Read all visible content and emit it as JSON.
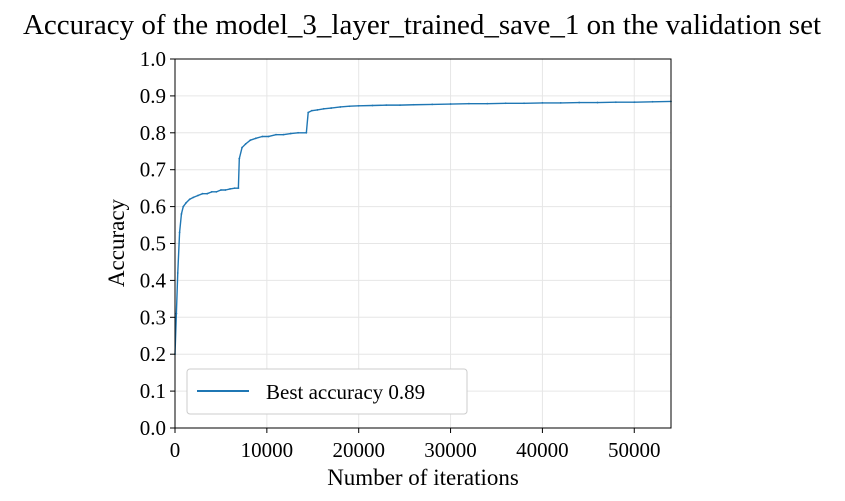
{
  "chart_data": {
    "type": "line",
    "title": "Accuracy of the model_3_layer_trained_save_1 on the validation set",
    "xlabel": "Number of iterations",
    "ylabel": "Accuracy",
    "xlim": [
      0,
      54000
    ],
    "ylim": [
      0.0,
      1.0
    ],
    "x_ticks": [
      0,
      10000,
      20000,
      30000,
      40000,
      50000
    ],
    "x_tick_labels": [
      "0",
      "10000",
      "20000",
      "30000",
      "40000",
      "50000"
    ],
    "y_ticks": [
      0.0,
      0.1,
      0.2,
      0.3,
      0.4,
      0.5,
      0.6,
      0.7,
      0.8,
      0.9,
      1.0
    ],
    "y_tick_labels": [
      "0.0",
      "0.1",
      "0.2",
      "0.3",
      "0.4",
      "0.5",
      "0.6",
      "0.7",
      "0.8",
      "0.9",
      "1.0"
    ],
    "grid": true,
    "legend_position": "lower-left",
    "series": [
      {
        "name": "Best accuracy 0.89",
        "color": "#1f77b4",
        "x": [
          0,
          150,
          300,
          500,
          700,
          900,
          1200,
          1600,
          2000,
          2500,
          3000,
          3500,
          4000,
          4500,
          5000,
          5500,
          6000,
          6500,
          6900,
          7000,
          7300,
          7700,
          8200,
          8800,
          9500,
          10200,
          11000,
          11800,
          12600,
          13400,
          14300,
          14500,
          14900,
          15500,
          16200,
          17000,
          18000,
          19000,
          20000,
          21500,
          23000,
          24500,
          26000,
          28000,
          30000,
          32000,
          34000,
          36000,
          38000,
          40000,
          42000,
          44000,
          46000,
          48000,
          50000,
          52000,
          54000
        ],
        "y": [
          0.2,
          0.31,
          0.42,
          0.53,
          0.58,
          0.6,
          0.61,
          0.62,
          0.625,
          0.63,
          0.635,
          0.635,
          0.64,
          0.64,
          0.645,
          0.645,
          0.648,
          0.65,
          0.65,
          0.73,
          0.76,
          0.77,
          0.78,
          0.785,
          0.79,
          0.79,
          0.795,
          0.795,
          0.798,
          0.8,
          0.8,
          0.855,
          0.86,
          0.862,
          0.865,
          0.867,
          0.87,
          0.872,
          0.873,
          0.874,
          0.875,
          0.875,
          0.876,
          0.877,
          0.878,
          0.879,
          0.879,
          0.88,
          0.88,
          0.881,
          0.881,
          0.882,
          0.882,
          0.883,
          0.883,
          0.884,
          0.885
        ]
      }
    ]
  }
}
